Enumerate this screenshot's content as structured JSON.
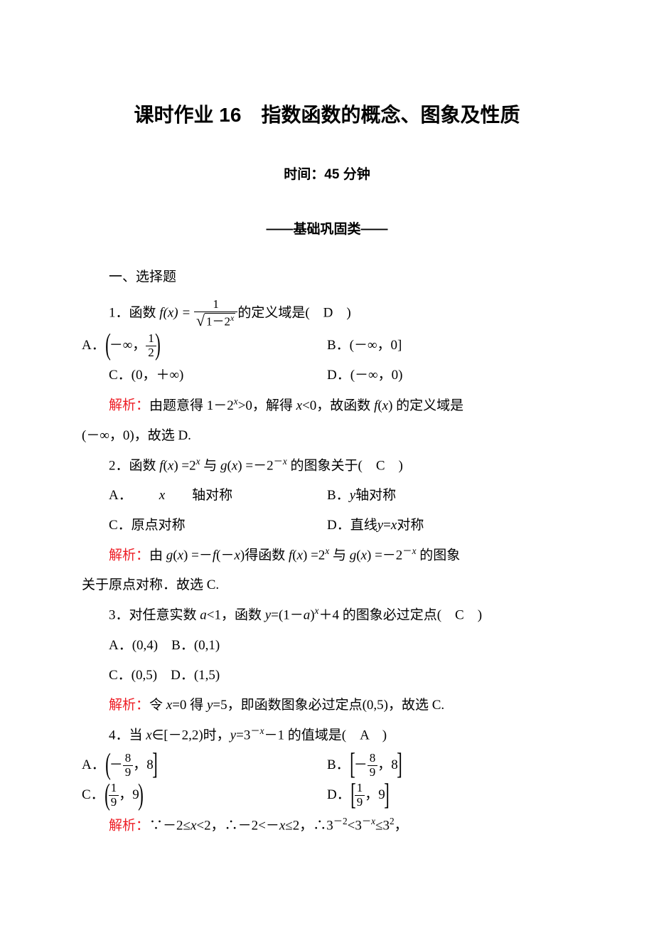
{
  "colors": {
    "text": "#000000",
    "red": "#ed1c24",
    "background": "#ffffff"
  },
  "typography": {
    "title_fontsize": 28,
    "body_fontsize": 19,
    "frac_fontsize": 17,
    "title_font": "SimHei",
    "body_font": "SimSun"
  },
  "header": {
    "title": "课时作业 16　指数函数的概念、图象及性质",
    "time": "时间：45 分钟",
    "section": "——基础巩固类——",
    "choice_heading": "一、选择题"
  },
  "q1": {
    "stem_prefix": "1．函数 ",
    "fx_eq": "f(x) =",
    "frac_num": "1",
    "sqrt_body": "1－2",
    "sqrt_exp": "x",
    "stem_suffix": "的定义域是(　D　)",
    "optA_label": "A．",
    "optA_frac_num": "1",
    "optA_frac_den": "2",
    "optA_pre": "－∞，",
    "optB": "B．(－∞，0]",
    "optC": "C．(0，＋∞)",
    "optD": "D．(－∞，0)",
    "expl_label": "解析：",
    "expl_line1": "由题意得 1－2x>0，解得 x<0，故函数 f(x) 的定义域是",
    "expl_line2": "(－∞，0)，故选 D."
  },
  "q2": {
    "stem": "2．函数 f(x) =2x 与 g(x) =－2－x 的图象关于(　C　)",
    "optA": "A．x 轴对称",
    "optB": "B．y 轴对称",
    "optC": "C．原点对称",
    "optD": "D．直线 y=x 对称",
    "expl_label": "解析：",
    "expl_line1": "由 g(x) =－f(－x)得函数 f(x) =2x 与 g(x) =－2－x 的图象",
    "expl_line2": "关于原点对称．故选 C."
  },
  "q3": {
    "stem": "3．对任意实数 a<1，函数 y=(1－a)x＋4 的图象必过定点(　C　)",
    "optA": "A．(0,4)",
    "optB": "B．(0,1)",
    "optC": "C．(0,5)",
    "optD": "D．(1,5)",
    "expl_label": "解析：",
    "expl": "令 x=0 得 y=5，即函数图象必过定点(0,5)，故选 C."
  },
  "q4": {
    "stem": "4．当 x∈[－2,2)时，y=3－x－1 的值域是(　A　)",
    "optA_label": "A．",
    "optA_num": "8",
    "optA_den": "9",
    "optA_pre": "－",
    "optA_mid": "，8",
    "optB_label": "B．",
    "optB_num": "8",
    "optB_den": "9",
    "optB_pre": "－",
    "optB_mid": "，8",
    "optC_label": "C．",
    "optC_num": "1",
    "optC_den": "9",
    "optC_mid": "，9",
    "optD_label": "D．",
    "optD_num": "1",
    "optD_den": "9",
    "optD_mid": "，9",
    "expl_label": "解析：",
    "expl": "∵－2≤x<2，∴－2<－x≤2，∴3－2<3－x≤32，"
  }
}
